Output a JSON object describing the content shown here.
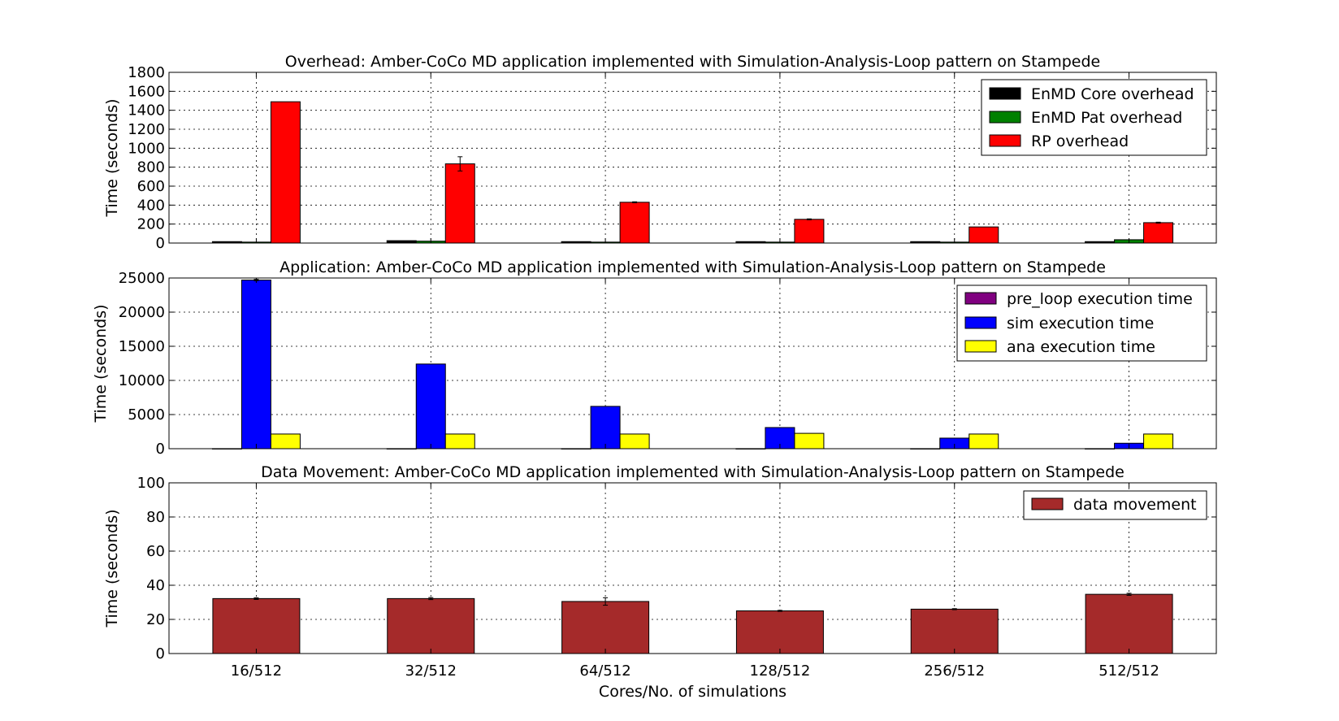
{
  "chart_data": [
    {
      "type": "bar",
      "title": "Overhead: Amber-CoCo MD application implemented with Simulation-Analysis-Loop pattern on Stampede",
      "xlabel": "",
      "ylabel": "Time (seconds)",
      "ylim": [
        0,
        1800
      ],
      "yticks": [
        0,
        200,
        400,
        600,
        800,
        1000,
        1200,
        1400,
        1600,
        1800
      ],
      "grid": true,
      "legend_position": "top-right",
      "categories": [
        "16/512",
        "32/512",
        "64/512",
        "128/512",
        "256/512",
        "512/512"
      ],
      "series": [
        {
          "name": "EnMD Core overhead",
          "color": "#000000",
          "values": [
            15,
            25,
            15,
            15,
            15,
            15
          ],
          "errors": [
            0,
            0,
            0,
            0,
            0,
            0
          ]
        },
        {
          "name": "EnMD Pat overhead",
          "color": "#008000",
          "values": [
            10,
            20,
            10,
            10,
            10,
            35
          ],
          "errors": [
            0,
            0,
            0,
            0,
            0,
            0
          ]
        },
        {
          "name": "RP overhead",
          "color": "#ff0000",
          "values": [
            1490,
            835,
            430,
            250,
            170,
            215
          ],
          "errors": [
            0,
            75,
            5,
            5,
            0,
            5
          ]
        }
      ]
    },
    {
      "type": "bar",
      "title": "Application: Amber-CoCo MD application implemented with Simulation-Analysis-Loop pattern on Stampede",
      "xlabel": "",
      "ylabel": "Time (seconds)",
      "ylim": [
        0,
        25000
      ],
      "yticks": [
        0,
        5000,
        10000,
        15000,
        20000,
        25000
      ],
      "grid": true,
      "legend_position": "top-right",
      "categories": [
        "16/512",
        "32/512",
        "64/512",
        "128/512",
        "256/512",
        "512/512"
      ],
      "series": [
        {
          "name": "pre_loop execution time",
          "color": "#800080",
          "values": [
            10,
            10,
            10,
            10,
            10,
            10
          ],
          "errors": [
            0,
            0,
            0,
            0,
            0,
            0
          ]
        },
        {
          "name": "sim execution time",
          "color": "#0000ff",
          "values": [
            24700,
            12400,
            6200,
            3100,
            1550,
            800
          ],
          "errors": [
            100,
            0,
            0,
            0,
            0,
            0
          ]
        },
        {
          "name": "ana execution time",
          "color": "#ffff00",
          "values": [
            2150,
            2150,
            2150,
            2250,
            2150,
            2150
          ],
          "errors": [
            0,
            0,
            0,
            0,
            0,
            0
          ]
        }
      ]
    },
    {
      "type": "bar",
      "title": "Data Movement: Amber-CoCo MD application implemented with Simulation-Analysis-Loop pattern on Stampede",
      "xlabel": "Cores/No. of simulations",
      "ylabel": "Time (seconds)",
      "ylim": [
        0,
        100
      ],
      "yticks": [
        0,
        20,
        40,
        60,
        80,
        100
      ],
      "grid": true,
      "legend_position": "top-right",
      "categories": [
        "16/512",
        "32/512",
        "64/512",
        "128/512",
        "256/512",
        "512/512"
      ],
      "series": [
        {
          "name": "data movement",
          "color": "#a52a2a",
          "values": [
            32.2,
            32.2,
            30.5,
            25,
            26,
            34.7
          ],
          "errors": [
            0.5,
            0.6,
            2.2,
            0.3,
            0.3,
            0.6
          ]
        }
      ]
    }
  ]
}
